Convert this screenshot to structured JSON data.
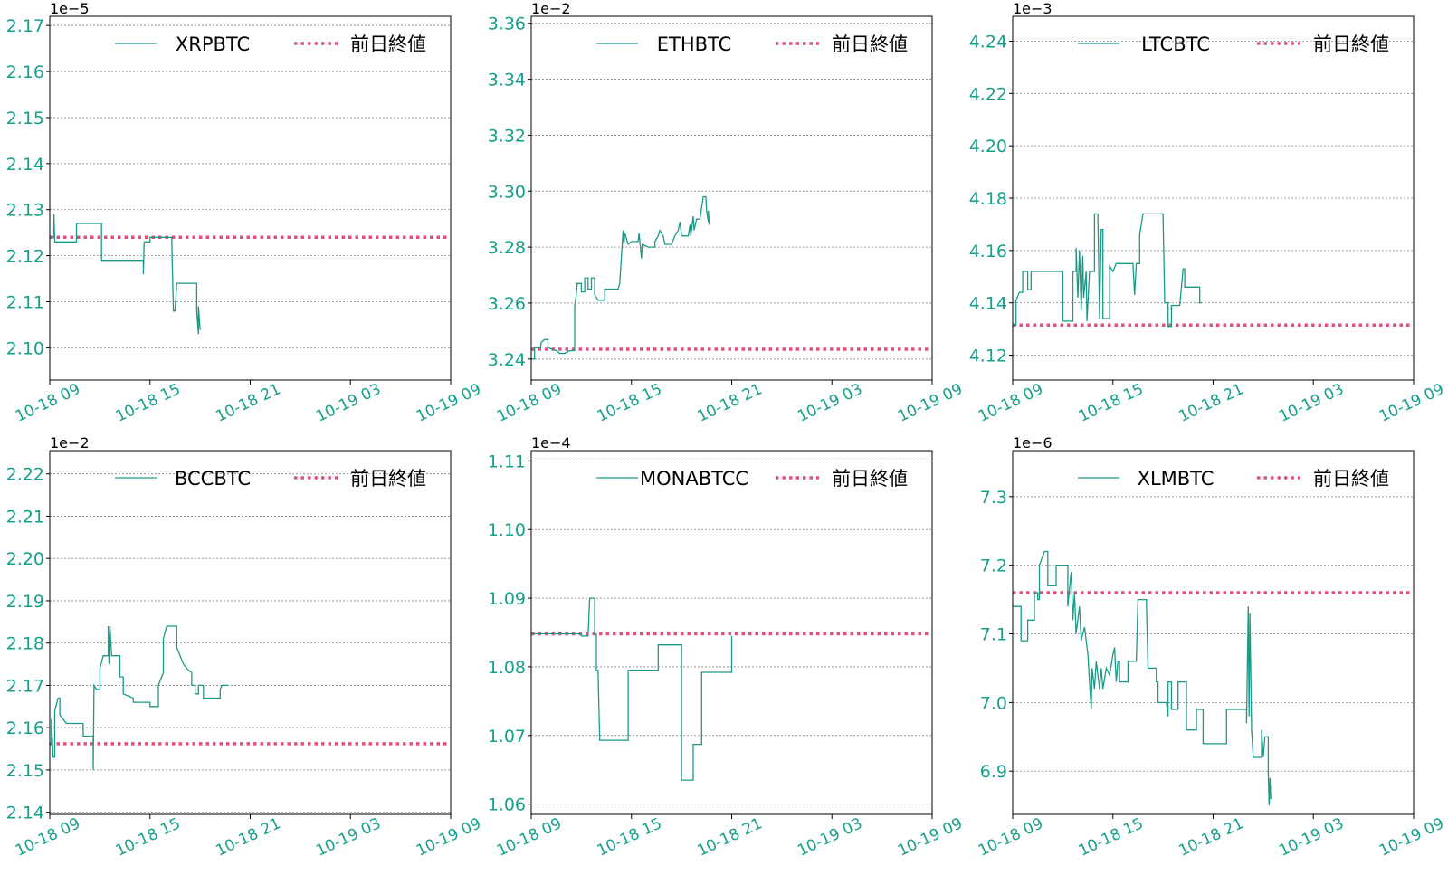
{
  "colors": {
    "series": "#1a9a86",
    "prev_close": "#e05278",
    "tick_label": "#15a08c",
    "axis": "#000000",
    "grid": "#888888"
  },
  "chart_data": [
    {
      "type": "line",
      "symbol": "XRPBTC",
      "multiplier": "1e−5",
      "legend": [
        "XRPBTC",
        "前日終値"
      ],
      "x_ticks": [
        "10-18 09",
        "10-18 15",
        "10-18 21",
        "10-19 03",
        "10-19 09"
      ],
      "y_ticks": [
        2.1,
        2.11,
        2.12,
        2.13,
        2.14,
        2.15,
        2.16,
        2.17
      ],
      "ylim": [
        2.093,
        2.172
      ],
      "tick_decimals": 2,
      "prev_close": 2.124,
      "grid": "horizontal",
      "legend_position": "top",
      "series": [
        [
          0,
          2.124
        ],
        [
          0.25,
          2.124
        ],
        [
          0.25,
          2.129
        ],
        [
          0.3,
          2.123
        ],
        [
          1.0,
          2.123
        ],
        [
          1.6,
          2.123
        ],
        [
          1.6,
          2.127
        ],
        [
          3.1,
          2.127
        ],
        [
          3.1,
          2.119
        ],
        [
          5.6,
          2.119
        ],
        [
          5.6,
          2.116
        ],
        [
          5.65,
          2.123
        ],
        [
          6.0,
          2.123
        ],
        [
          6.0,
          2.124
        ],
        [
          7.1,
          2.124
        ],
        [
          7.3,
          2.124
        ],
        [
          7.4,
          2.108
        ],
        [
          7.5,
          2.108
        ],
        [
          7.6,
          2.114
        ],
        [
          8.8,
          2.114
        ],
        [
          8.8,
          2.108
        ],
        [
          8.9,
          2.103
        ],
        [
          8.9,
          2.109
        ],
        [
          9.0,
          2.104
        ],
        [
          9.05,
          2.104
        ]
      ]
    },
    {
      "type": "line",
      "symbol": "ETHBTC",
      "multiplier": "1e−2",
      "legend": [
        "ETHBTC",
        "前日終値"
      ],
      "x_ticks": [
        "10-18 09",
        "10-18 15",
        "10-18 21",
        "10-19 03",
        "10-19 09"
      ],
      "y_ticks": [
        3.24,
        3.26,
        3.28,
        3.3,
        3.32,
        3.34,
        3.36
      ],
      "ylim": [
        3.2325,
        3.3625
      ],
      "tick_decimals": 2,
      "prev_close": 3.2435,
      "grid": "horizontal",
      "legend_position": "top",
      "series": [
        [
          0,
          3.24
        ],
        [
          0.2,
          3.24
        ],
        [
          0.2,
          3.244
        ],
        [
          0.55,
          3.244
        ],
        [
          0.6,
          3.246
        ],
        [
          0.8,
          3.247
        ],
        [
          1.0,
          3.247
        ],
        [
          1.0,
          3.244
        ],
        [
          1.5,
          3.243
        ],
        [
          1.7,
          3.242
        ],
        [
          2.0,
          3.242
        ],
        [
          2.3,
          3.243
        ],
        [
          2.6,
          3.243
        ],
        [
          2.6,
          3.259
        ],
        [
          2.7,
          3.263
        ],
        [
          2.75,
          3.267
        ],
        [
          3.0,
          3.267
        ],
        [
          3.0,
          3.264
        ],
        [
          3.2,
          3.264
        ],
        [
          3.2,
          3.269
        ],
        [
          3.4,
          3.269
        ],
        [
          3.4,
          3.265
        ],
        [
          3.6,
          3.265
        ],
        [
          3.6,
          3.269
        ],
        [
          3.8,
          3.269
        ],
        [
          3.8,
          3.263
        ],
        [
          4.0,
          3.261
        ],
        [
          4.4,
          3.261
        ],
        [
          4.4,
          3.265
        ],
        [
          5.2,
          3.265
        ],
        [
          5.3,
          3.267
        ],
        [
          5.5,
          3.286
        ],
        [
          5.55,
          3.281
        ],
        [
          5.6,
          3.285
        ],
        [
          5.8,
          3.281
        ],
        [
          6.0,
          3.282
        ],
        [
          6.4,
          3.282
        ],
        [
          6.45,
          3.285
        ],
        [
          6.6,
          3.276
        ],
        [
          6.65,
          3.281
        ],
        [
          7.0,
          3.28
        ],
        [
          7.4,
          3.28
        ],
        [
          7.4,
          3.282
        ],
        [
          7.6,
          3.284
        ],
        [
          7.7,
          3.286
        ],
        [
          7.9,
          3.284
        ],
        [
          8.0,
          3.281
        ],
        [
          8.4,
          3.281
        ],
        [
          8.6,
          3.284
        ],
        [
          8.8,
          3.286
        ],
        [
          8.9,
          3.289
        ],
        [
          9.0,
          3.284
        ],
        [
          9.4,
          3.284
        ],
        [
          9.5,
          3.288
        ],
        [
          9.55,
          3.284
        ],
        [
          9.7,
          3.291
        ],
        [
          9.75,
          3.286
        ],
        [
          9.9,
          3.29
        ],
        [
          10.1,
          3.29
        ],
        [
          10.3,
          3.298
        ],
        [
          10.45,
          3.298
        ],
        [
          10.5,
          3.293
        ],
        [
          10.6,
          3.289
        ],
        [
          10.6,
          3.293
        ],
        [
          10.65,
          3.288
        ]
      ]
    },
    {
      "type": "line",
      "symbol": "LTCBTC",
      "multiplier": "1e−3",
      "legend": [
        "LTCBTC",
        "前日終値"
      ],
      "x_ticks": [
        "10-18 09",
        "10-18 15",
        "10-18 21",
        "10-19 03",
        "10-19 09"
      ],
      "y_ticks": [
        4.12,
        4.14,
        4.16,
        4.18,
        4.2,
        4.22,
        4.24
      ],
      "ylim": [
        4.1105,
        4.2495
      ],
      "tick_decimals": 2,
      "prev_close": 4.1315,
      "grid": "horizontal",
      "legend_position": "top",
      "series": [
        [
          0,
          4.1315
        ],
        [
          0.2,
          4.1315
        ],
        [
          0.2,
          4.141
        ],
        [
          0.4,
          4.144
        ],
        [
          0.6,
          4.144
        ],
        [
          0.6,
          4.152
        ],
        [
          0.9,
          4.152
        ],
        [
          0.9,
          4.145
        ],
        [
          1.1,
          4.145
        ],
        [
          1.1,
          4.152
        ],
        [
          3.0,
          4.152
        ],
        [
          3.0,
          4.133
        ],
        [
          3.6,
          4.133
        ],
        [
          3.6,
          4.152
        ],
        [
          3.8,
          4.152
        ],
        [
          3.8,
          4.161
        ],
        [
          3.9,
          4.142
        ],
        [
          4.0,
          4.16
        ],
        [
          4.1,
          4.137
        ],
        [
          4.2,
          4.158
        ],
        [
          4.25,
          4.142
        ],
        [
          4.4,
          4.152
        ],
        [
          4.45,
          4.133
        ],
        [
          4.6,
          4.152
        ],
        [
          4.9,
          4.152
        ],
        [
          4.9,
          4.174
        ],
        [
          5.1,
          4.174
        ],
        [
          5.2,
          4.134
        ],
        [
          5.3,
          4.168
        ],
        [
          5.4,
          4.168
        ],
        [
          5.4,
          4.134
        ],
        [
          5.8,
          4.134
        ],
        [
          5.8,
          4.154
        ],
        [
          6.0,
          4.152
        ],
        [
          6.2,
          4.155
        ],
        [
          7.2,
          4.155
        ],
        [
          7.3,
          4.143
        ],
        [
          7.4,
          4.155
        ],
        [
          7.6,
          4.155
        ],
        [
          7.6,
          4.166
        ],
        [
          7.8,
          4.174
        ],
        [
          9.0,
          4.174
        ],
        [
          9.1,
          4.14
        ],
        [
          9.3,
          4.14
        ],
        [
          9.3,
          4.131
        ],
        [
          9.5,
          4.131
        ],
        [
          9.5,
          4.139
        ],
        [
          10.0,
          4.139
        ],
        [
          10.2,
          4.153
        ],
        [
          10.3,
          4.153
        ],
        [
          10.3,
          4.146
        ],
        [
          11.2,
          4.146
        ],
        [
          11.2,
          4.14
        ],
        [
          11.3,
          4.14
        ]
      ]
    },
    {
      "type": "line",
      "symbol": "BCCBTC",
      "multiplier": "1e−2",
      "legend": [
        "BCCBTC",
        "前日終値"
      ],
      "x_ticks": [
        "10-18 09",
        "10-18 15",
        "10-18 21",
        "10-19 03",
        "10-19 09"
      ],
      "y_ticks": [
        2.14,
        2.15,
        2.16,
        2.17,
        2.18,
        2.19,
        2.2,
        2.21,
        2.22
      ],
      "ylim": [
        2.1395,
        2.2255
      ],
      "tick_decimals": 2,
      "prev_close": 2.1562,
      "grid": "horizontal",
      "legend_position": "top",
      "series": [
        [
          0,
          2.156
        ],
        [
          0.1,
          2.156
        ],
        [
          0.1,
          2.162
        ],
        [
          0.2,
          2.153
        ],
        [
          0.3,
          2.153
        ],
        [
          0.3,
          2.164
        ],
        [
          0.5,
          2.167
        ],
        [
          0.6,
          2.167
        ],
        [
          0.6,
          2.163
        ],
        [
          0.8,
          2.162
        ],
        [
          1.0,
          2.161
        ],
        [
          2.0,
          2.161
        ],
        [
          2.0,
          2.158
        ],
        [
          2.6,
          2.158
        ],
        [
          2.6,
          2.15
        ],
        [
          2.65,
          2.17
        ],
        [
          2.8,
          2.169
        ],
        [
          3.0,
          2.169
        ],
        [
          3.0,
          2.174
        ],
        [
          3.2,
          2.177
        ],
        [
          3.5,
          2.177
        ],
        [
          3.5,
          2.184
        ],
        [
          3.55,
          2.175
        ],
        [
          3.6,
          2.184
        ],
        [
          3.7,
          2.177
        ],
        [
          4.2,
          2.177
        ],
        [
          4.2,
          2.172
        ],
        [
          4.4,
          2.172
        ],
        [
          4.4,
          2.168
        ],
        [
          5.0,
          2.167
        ],
        [
          5.0,
          2.166
        ],
        [
          6.0,
          2.166
        ],
        [
          6.0,
          2.165
        ],
        [
          6.5,
          2.165
        ],
        [
          6.5,
          2.17
        ],
        [
          6.8,
          2.173
        ],
        [
          6.8,
          2.181
        ],
        [
          7.0,
          2.184
        ],
        [
          7.6,
          2.184
        ],
        [
          7.6,
          2.179
        ],
        [
          7.8,
          2.177
        ],
        [
          8.0,
          2.175
        ],
        [
          8.2,
          2.174
        ],
        [
          8.5,
          2.173
        ],
        [
          8.5,
          2.17
        ],
        [
          8.7,
          2.17
        ],
        [
          8.7,
          2.168
        ],
        [
          8.9,
          2.168
        ],
        [
          8.9,
          2.17
        ],
        [
          9.2,
          2.17
        ],
        [
          9.2,
          2.167
        ],
        [
          10.2,
          2.167
        ],
        [
          10.2,
          2.169
        ],
        [
          10.3,
          2.17
        ],
        [
          10.7,
          2.17
        ]
      ]
    },
    {
      "type": "line",
      "symbol": "MONABTCC",
      "multiplier": "1e−4",
      "legend": [
        "MONABTCC",
        "前日終値"
      ],
      "x_ticks": [
        "10-18 09",
        "10-18 15",
        "10-18 21",
        "10-19 03",
        "10-19 09"
      ],
      "y_ticks": [
        1.06,
        1.07,
        1.08,
        1.09,
        1.1,
        1.11
      ],
      "ylim": [
        1.0585,
        1.1115
      ],
      "tick_decimals": 2,
      "prev_close": 1.0848,
      "grid": "horizontal",
      "legend_position": "top",
      "series": [
        [
          0,
          1.0848
        ],
        [
          3.0,
          1.0848
        ],
        [
          3.0,
          1.0845
        ],
        [
          3.4,
          1.0845
        ],
        [
          3.5,
          1.09
        ],
        [
          3.8,
          1.09
        ],
        [
          3.8,
          1.0848
        ],
        [
          3.9,
          1.0848
        ],
        [
          3.9,
          1.0795
        ],
        [
          4.0,
          1.0795
        ],
        [
          4.1,
          1.0693
        ],
        [
          5.8,
          1.0693
        ],
        [
          5.8,
          1.0795
        ],
        [
          7.6,
          1.0795
        ],
        [
          7.6,
          1.0832
        ],
        [
          9.0,
          1.0832
        ],
        [
          9.0,
          1.0635
        ],
        [
          9.7,
          1.0635
        ],
        [
          9.7,
          1.0687
        ],
        [
          10.2,
          1.0687
        ],
        [
          10.2,
          1.0792
        ],
        [
          12.0,
          1.0792
        ],
        [
          12.0,
          1.0845
        ]
      ]
    },
    {
      "type": "line",
      "symbol": "XLMBTC",
      "multiplier": "1e−6",
      "legend": [
        "XLMBTC",
        "前日終値"
      ],
      "x_ticks": [
        "10-18 09",
        "10-18 15",
        "10-18 21",
        "10-19 03",
        "10-19 09"
      ],
      "y_ticks": [
        6.9,
        7.0,
        7.1,
        7.2,
        7.3
      ],
      "ylim": [
        6.837,
        7.367
      ],
      "tick_decimals": 1,
      "prev_close": 7.16,
      "grid": "horizontal",
      "legend_position": "top",
      "series": [
        [
          0,
          7.14
        ],
        [
          0.5,
          7.14
        ],
        [
          0.5,
          7.09
        ],
        [
          0.9,
          7.09
        ],
        [
          0.9,
          7.12
        ],
        [
          1.3,
          7.12
        ],
        [
          1.3,
          7.16
        ],
        [
          1.5,
          7.16
        ],
        [
          1.5,
          7.15
        ],
        [
          1.6,
          7.15
        ],
        [
          1.6,
          7.2
        ],
        [
          1.9,
          7.22
        ],
        [
          2.1,
          7.22
        ],
        [
          2.1,
          7.17
        ],
        [
          2.6,
          7.17
        ],
        [
          2.6,
          7.2
        ],
        [
          3.3,
          7.2
        ],
        [
          3.3,
          7.14
        ],
        [
          3.5,
          7.19
        ],
        [
          3.6,
          7.12
        ],
        [
          3.7,
          7.16
        ],
        [
          3.8,
          7.1
        ],
        [
          4.0,
          7.14
        ],
        [
          4.1,
          7.09
        ],
        [
          4.3,
          7.11
        ],
        [
          4.4,
          7.09
        ],
        [
          4.5,
          7.07
        ],
        [
          4.6,
          7.03
        ],
        [
          4.7,
          6.99
        ],
        [
          4.75,
          7.05
        ],
        [
          4.9,
          7.02
        ],
        [
          5.0,
          7.06
        ],
        [
          5.2,
          7.02
        ],
        [
          5.3,
          7.05
        ],
        [
          5.4,
          7.02
        ],
        [
          5.6,
          7.05
        ],
        [
          5.8,
          7.04
        ],
        [
          6.0,
          7.07
        ],
        [
          6.1,
          7.08
        ],
        [
          6.2,
          7.03
        ],
        [
          6.3,
          7.06
        ],
        [
          6.4,
          7.06
        ],
        [
          6.4,
          7.03
        ],
        [
          6.9,
          7.03
        ],
        [
          6.9,
          7.06
        ],
        [
          7.4,
          7.06
        ],
        [
          7.5,
          7.15
        ],
        [
          8.0,
          7.15
        ],
        [
          8.1,
          7.05
        ],
        [
          8.6,
          7.05
        ],
        [
          8.6,
          7.03
        ],
        [
          8.7,
          7.03
        ],
        [
          8.7,
          7.0
        ],
        [
          9.2,
          7.0
        ],
        [
          9.3,
          6.98
        ],
        [
          9.3,
          7.03
        ],
        [
          9.5,
          7.03
        ],
        [
          9.5,
          6.99
        ],
        [
          9.9,
          6.99
        ],
        [
          9.9,
          7.03
        ],
        [
          10.4,
          7.03
        ],
        [
          10.4,
          6.96
        ],
        [
          11.0,
          6.96
        ],
        [
          11.0,
          6.99
        ],
        [
          11.4,
          6.99
        ],
        [
          11.4,
          6.94
        ],
        [
          12.8,
          6.94
        ],
        [
          12.8,
          6.99
        ],
        [
          14.0,
          6.99
        ],
        [
          14.0,
          6.97
        ],
        [
          14.1,
          7.14
        ],
        [
          14.15,
          6.98
        ],
        [
          14.2,
          7.13
        ],
        [
          14.3,
          6.96
        ],
        [
          14.4,
          6.92
        ],
        [
          14.9,
          6.92
        ],
        [
          14.9,
          6.96
        ],
        [
          15.0,
          6.92
        ],
        [
          15.1,
          6.95
        ],
        [
          15.3,
          6.95
        ],
        [
          15.3,
          6.9
        ],
        [
          15.35,
          6.85
        ],
        [
          15.4,
          6.89
        ],
        [
          15.45,
          6.86
        ],
        [
          15.5,
          6.86
        ]
      ]
    }
  ]
}
